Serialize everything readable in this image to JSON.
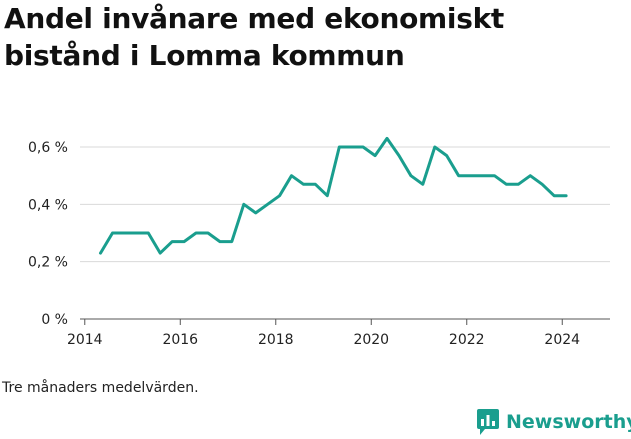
{
  "title": "Andel invånare med ekonomiskt bistånd i Lomma kommun",
  "footnote": "Tre månaders medelvärden.",
  "brand": {
    "name": "Newsworthy",
    "color": "#1a9e8e"
  },
  "chart_data": {
    "type": "line",
    "title": "Andel invånare med ekonomiskt bistånd i Lomma kommun",
    "xlabel": "",
    "ylabel": "",
    "xlim": [
      2013.9,
      2025.0
    ],
    "ylim": [
      0,
      0.6
    ],
    "xticks": [
      2014,
      2016,
      2018,
      2020,
      2022,
      2024
    ],
    "xtick_labels": [
      "2014",
      "2016",
      "2018",
      "2020",
      "2022",
      "2024"
    ],
    "yticks": [
      0,
      0.2,
      0.4,
      0.6
    ],
    "ytick_labels": [
      "0 %",
      "0,2 %",
      "0,4 %",
      "0,6 %"
    ],
    "grid": "horizontal",
    "line_color": "#1a9e8e",
    "series": [
      {
        "x": [
          2014.33,
          2014.58,
          2014.83,
          2015.08,
          2015.33,
          2015.58,
          2015.83,
          2016.08,
          2016.33,
          2016.58,
          2016.83,
          2017.08,
          2017.33,
          2017.58,
          2017.83,
          2018.08,
          2018.33,
          2018.58,
          2018.83,
          2019.08,
          2019.33,
          2019.58,
          2019.83,
          2020.08,
          2020.33,
          2020.58,
          2020.83,
          2021.08,
          2021.33,
          2021.58,
          2021.83,
          2022.08,
          2022.33,
          2022.58,
          2022.83,
          2023.08,
          2023.33,
          2023.58,
          2023.83,
          2024.08
        ],
        "y": [
          0.23,
          0.3,
          0.3,
          0.3,
          0.3,
          0.23,
          0.27,
          0.27,
          0.3,
          0.3,
          0.27,
          0.27,
          0.4,
          0.37,
          0.4,
          0.43,
          0.5,
          0.47,
          0.47,
          0.43,
          0.6,
          0.6,
          0.6,
          0.57,
          0.63,
          0.57,
          0.5,
          0.47,
          0.6,
          0.57,
          0.5,
          0.5,
          0.5,
          0.5,
          0.47,
          0.47,
          0.5,
          0.47,
          0.43,
          0.43
        ]
      }
    ]
  }
}
